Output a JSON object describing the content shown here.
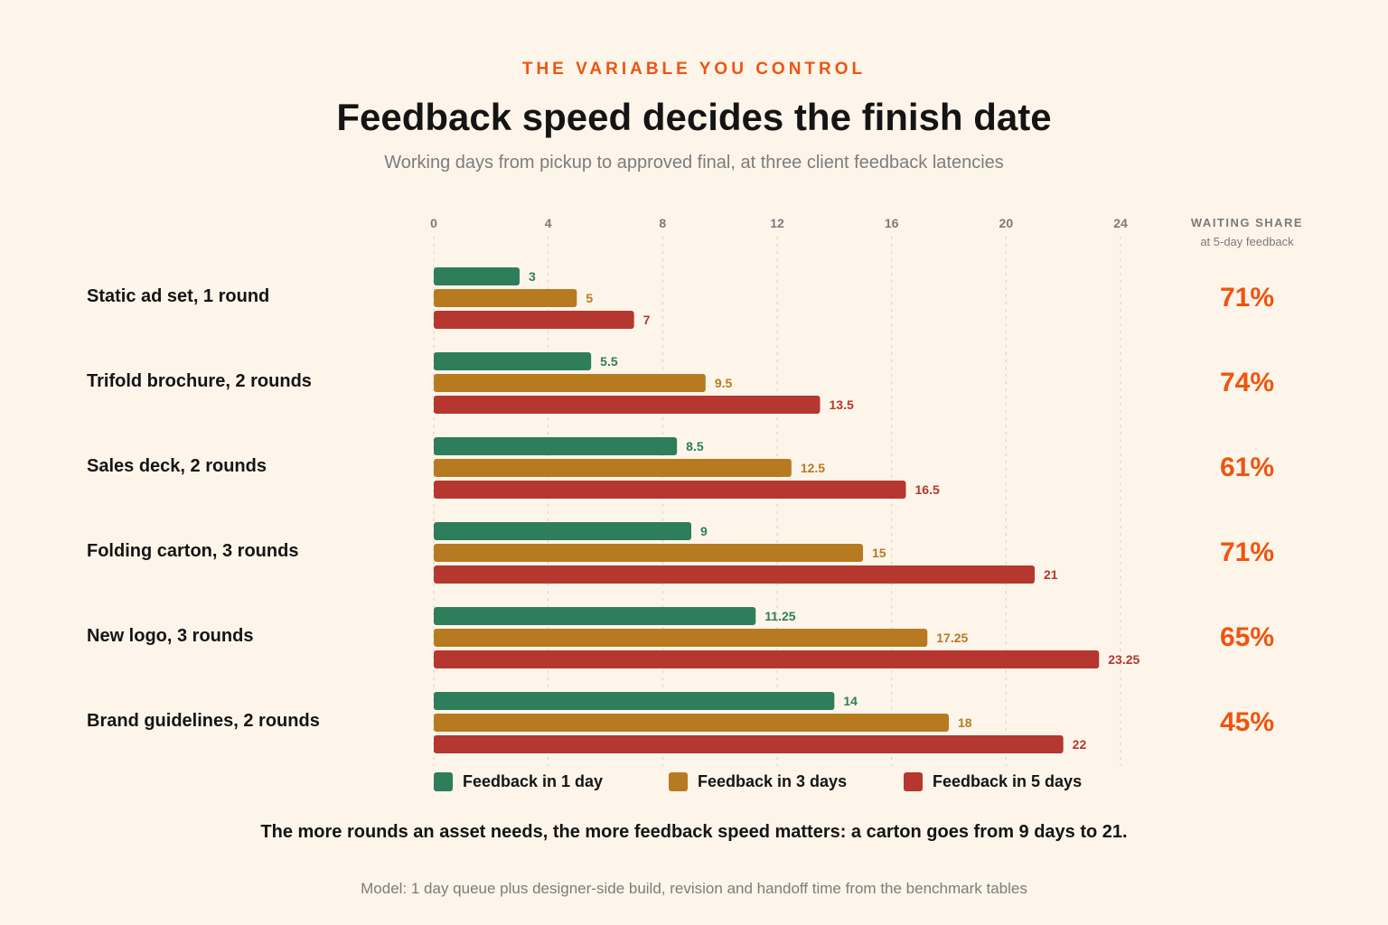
{
  "header": {
    "eyebrow": "THE VARIABLE YOU CONTROL",
    "title": "Feedback speed decides the finish date",
    "subtitle": "Working days from pickup to approved final, at three client feedback latencies"
  },
  "waiting_share": {
    "heading": "WAITING SHARE",
    "subheading": "at 5-day feedback",
    "values": [
      "71%",
      "74%",
      "61%",
      "71%",
      "65%",
      "45%"
    ],
    "color": "#f0540f"
  },
  "chart_data": {
    "type": "bar",
    "orientation": "horizontal",
    "categories": [
      "Static ad set, 1 round",
      "Trifold brochure, 2 rounds",
      "Sales deck, 2 rounds",
      "Folding carton, 3 rounds",
      "New logo, 3 rounds",
      "Brand guidelines, 2 rounds"
    ],
    "series": [
      {
        "name": "Feedback in 1 day",
        "color": "#2e7d5b",
        "values": [
          3,
          5.5,
          8.5,
          9,
          11.25,
          14
        ]
      },
      {
        "name": "Feedback in 3 days",
        "color": "#b87a21",
        "values": [
          5,
          9.5,
          12.5,
          15,
          17.25,
          18
        ]
      },
      {
        "name": "Feedback in 5 days",
        "color": "#b5372f",
        "values": [
          7,
          13.5,
          16.5,
          21,
          23.25,
          22
        ]
      }
    ],
    "xlim": [
      0,
      24
    ],
    "xticks": [
      0,
      4,
      8,
      12,
      16,
      20,
      24
    ],
    "grid": true,
    "legend_position": "bottom"
  },
  "takeaway": "The more rounds an asset needs, the more feedback speed matters: a carton goes from 9 days to 21.",
  "footnote": "Model: 1 day queue plus designer-side build, revision and handoff time from the benchmark tables"
}
